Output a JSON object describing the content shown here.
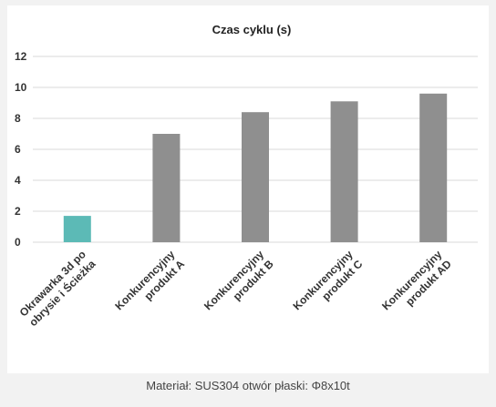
{
  "chart_data": {
    "type": "bar",
    "title": "Czas cyklu (s)",
    "categories": [
      [
        "Okrawarka 3d po",
        "obrysie i Ścieżka"
      ],
      [
        "Konkurencyjny",
        "produkt A"
      ],
      [
        "Konkurencyjny",
        "produkt B"
      ],
      [
        "Konkurencyjny",
        "produkt C"
      ],
      [
        "Konkurencyjny",
        "produkt AD"
      ]
    ],
    "values": [
      1.7,
      7.0,
      8.4,
      9.1,
      9.6
    ],
    "colors": [
      "#5cbab6",
      "#8f8f8f",
      "#8f8f8f",
      "#8f8f8f",
      "#8f8f8f"
    ],
    "ylim": [
      0,
      12
    ],
    "yticks": [
      0,
      2,
      4,
      6,
      8,
      10,
      12
    ],
    "grid": true,
    "legend": "none"
  },
  "caption": "Materiał: SUS304 otwór płaski: Φ8x10t"
}
